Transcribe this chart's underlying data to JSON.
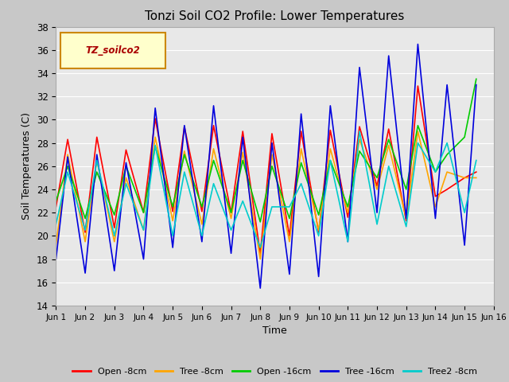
{
  "title": "Tonzi Soil CO2 Profile: Lower Temperatures",
  "xlabel": "Time",
  "ylabel": "Soil Temperatures (C)",
  "ylim": [
    14,
    38
  ],
  "xlim": [
    0,
    15
  ],
  "xtick_labels": [
    "Jun 1",
    "Jun 2",
    "Jun 3",
    "Jun 4",
    "Jun 5",
    "Jun 6",
    "Jun 7",
    "Jun 8",
    "Jun 9",
    "Jun 10",
    "Jun 11",
    "Jun 12",
    "Jun 13",
    "Jun 14",
    "Jun 15",
    "Jun 16"
  ],
  "ytick_values": [
    14,
    16,
    18,
    20,
    22,
    24,
    26,
    28,
    30,
    32,
    34,
    36,
    38
  ],
  "fig_bg_color": "#c8c8c8",
  "plot_bg_color": "#e8e8e8",
  "grid_color": "#ffffff",
  "legend_label": "TZ_soilco2",
  "series": {
    "Open -8cm": {
      "color": "#ff0000",
      "x": [
        0.0,
        0.4,
        1.0,
        1.4,
        2.0,
        2.4,
        3.0,
        3.4,
        4.0,
        4.4,
        5.0,
        5.4,
        6.0,
        6.4,
        7.0,
        7.4,
        8.0,
        8.4,
        9.0,
        9.4,
        10.0,
        10.4,
        11.0,
        11.4,
        12.0,
        12.4,
        13.0,
        13.4,
        14.0,
        14.4
      ],
      "y": [
        22.5,
        28.3,
        20.3,
        28.5,
        20.7,
        27.4,
        22.0,
        30.1,
        22.1,
        29.4,
        22.1,
        29.5,
        22.0,
        29.0,
        18.5,
        28.8,
        20.0,
        29.0,
        20.3,
        29.1,
        21.6,
        29.4,
        24.3,
        29.2,
        21.3,
        32.9,
        23.4,
        24.0,
        25.0,
        25.5
      ]
    },
    "Tree -8cm": {
      "color": "#ffa500",
      "x": [
        0.0,
        0.4,
        1.0,
        1.4,
        2.0,
        2.4,
        3.0,
        3.4,
        4.0,
        4.4,
        5.0,
        5.4,
        6.0,
        6.4,
        7.0,
        7.4,
        8.0,
        8.4,
        9.0,
        9.4,
        10.0,
        10.4,
        11.0,
        11.4,
        12.0,
        12.4,
        13.0,
        13.4,
        14.0,
        14.4
      ],
      "y": [
        19.2,
        27.0,
        19.5,
        26.5,
        19.5,
        25.0,
        20.5,
        28.5,
        21.3,
        27.3,
        21.0,
        27.5,
        21.5,
        27.2,
        18.0,
        27.0,
        19.5,
        27.5,
        20.5,
        27.5,
        22.0,
        28.3,
        24.0,
        27.8,
        21.5,
        29.0,
        22.5,
        25.5,
        25.0,
        25.0
      ]
    },
    "Open -16cm": {
      "color": "#00cc00",
      "x": [
        0.0,
        0.4,
        1.0,
        1.4,
        2.0,
        2.4,
        3.0,
        3.4,
        4.0,
        4.4,
        5.0,
        5.4,
        6.0,
        6.4,
        7.0,
        7.4,
        8.0,
        8.4,
        9.0,
        9.4,
        10.0,
        10.4,
        11.0,
        11.4,
        12.0,
        12.4,
        13.0,
        13.4,
        14.0,
        14.4
      ],
      "y": [
        23.0,
        26.0,
        21.5,
        25.5,
        21.8,
        26.0,
        22.0,
        27.7,
        22.5,
        27.0,
        22.5,
        26.5,
        22.0,
        26.5,
        21.2,
        26.0,
        21.5,
        26.3,
        21.8,
        26.5,
        22.5,
        27.3,
        25.0,
        28.3,
        24.0,
        29.5,
        25.5,
        27.0,
        28.5,
        33.5
      ]
    },
    "Tree -16cm": {
      "color": "#0000dd",
      "x": [
        0.0,
        0.4,
        1.0,
        1.4,
        2.0,
        2.4,
        3.0,
        3.4,
        4.0,
        4.4,
        5.0,
        5.4,
        6.0,
        6.4,
        7.0,
        7.4,
        8.0,
        8.4,
        9.0,
        9.4,
        10.0,
        10.4,
        11.0,
        11.4,
        12.0,
        12.4,
        13.0,
        13.4,
        14.0,
        14.4
      ],
      "y": [
        18.0,
        26.8,
        16.8,
        27.0,
        17.0,
        26.3,
        18.0,
        31.0,
        19.0,
        29.5,
        19.5,
        31.2,
        18.5,
        28.5,
        15.5,
        28.0,
        16.7,
        30.5,
        16.5,
        31.2,
        19.5,
        34.5,
        22.0,
        35.5,
        21.5,
        36.5,
        21.5,
        33.0,
        19.2,
        33.0
      ]
    },
    "Tree2 -8cm": {
      "color": "#00cccc",
      "x": [
        0.0,
        0.4,
        1.0,
        1.4,
        2.0,
        2.4,
        3.0,
        3.4,
        4.0,
        4.4,
        5.0,
        5.4,
        6.0,
        6.4,
        7.0,
        7.4,
        8.0,
        8.4,
        9.0,
        9.4,
        10.0,
        10.4,
        11.0,
        11.4,
        12.0,
        12.4,
        13.0,
        13.4,
        14.0,
        14.4
      ],
      "y": [
        21.0,
        25.5,
        20.5,
        26.5,
        20.0,
        24.5,
        20.5,
        27.8,
        20.0,
        25.5,
        20.0,
        24.5,
        20.5,
        23.0,
        19.0,
        22.5,
        22.5,
        24.5,
        20.0,
        26.5,
        19.5,
        29.0,
        21.0,
        26.0,
        20.8,
        28.0,
        25.5,
        28.0,
        22.0,
        26.5
      ]
    }
  }
}
